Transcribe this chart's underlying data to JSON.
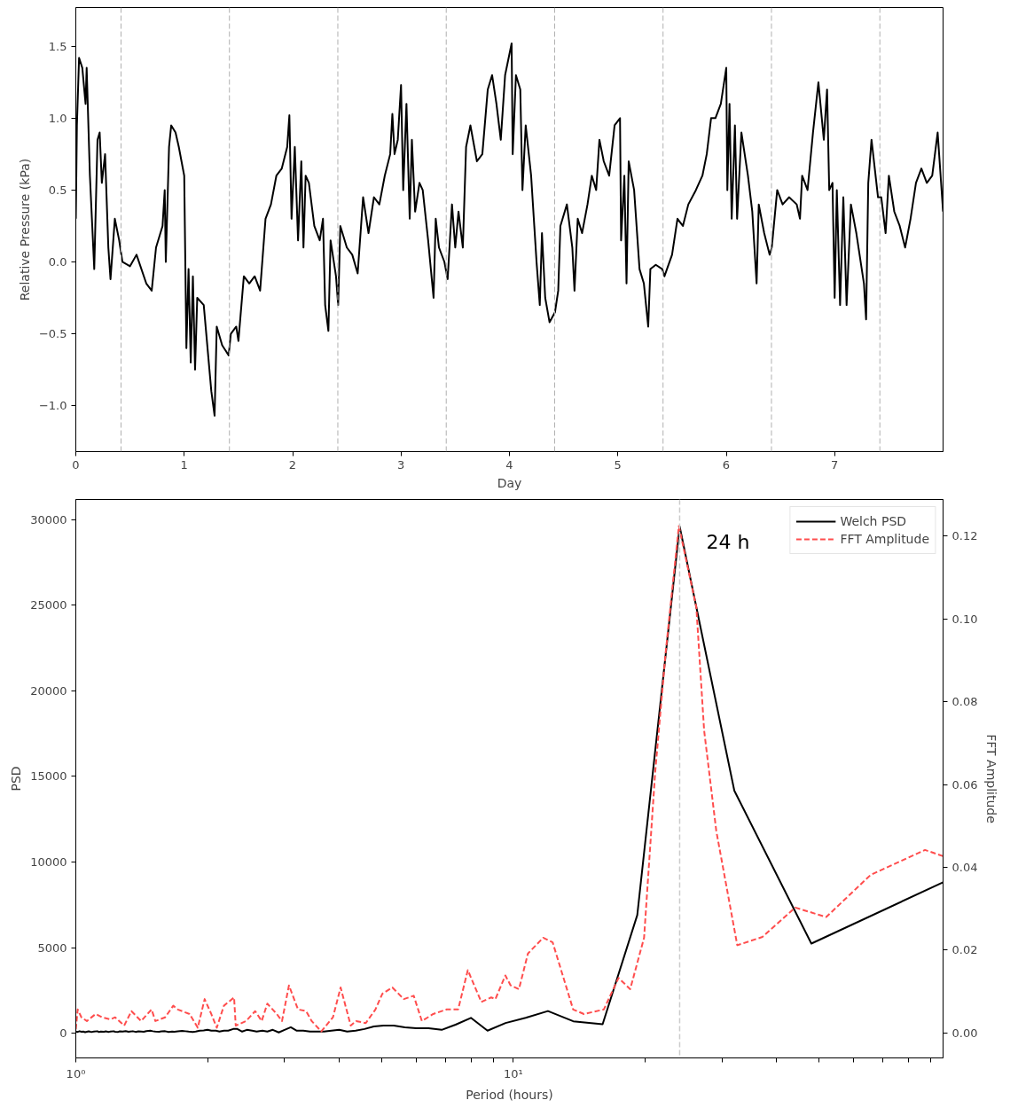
{
  "chart_data": [
    {
      "type": "line",
      "xlabel": "Day",
      "ylabel": "Relative Pressure (kPa)",
      "xlim": [
        0,
        8.0
      ],
      "ylim": [
        -1.32,
        1.77
      ],
      "xticks": [
        0,
        1,
        2,
        3,
        4,
        5,
        6,
        7
      ],
      "yticks": [
        {
          "value": -1.0,
          "label": "−1.0"
        },
        {
          "value": -0.5,
          "label": "−0.5"
        },
        {
          "value": 0.0,
          "label": "0.0"
        },
        {
          "value": 0.5,
          "label": "0.5"
        },
        {
          "value": 1.0,
          "label": "1.0"
        },
        {
          "value": 1.5,
          "label": "1.5"
        }
      ],
      "grid": false,
      "legend": false,
      "line_style": "solid",
      "series": [
        {
          "color": "#000000",
          "x": [
            0,
            0.01,
            0.03,
            0.06,
            0.09,
            0.1,
            0.13,
            0.17,
            0.2,
            0.22,
            0.24,
            0.27,
            0.3,
            0.32,
            0.36,
            0.4,
            0.43,
            0.5,
            0.56,
            0.65,
            0.7,
            0.74,
            0.8,
            0.82,
            0.83,
            0.86,
            0.88,
            0.92,
            0.95,
            1.0,
            1.02,
            1.04,
            1.06,
            1.08,
            1.1,
            1.12,
            1.18,
            1.25,
            1.28,
            1.3,
            1.35,
            1.41,
            1.43,
            1.48,
            1.5,
            1.55,
            1.6,
            1.65,
            1.7,
            1.75,
            1.8,
            1.85,
            1.9,
            1.95,
            1.97,
            1.99,
            2.02,
            2.05,
            2.08,
            2.1,
            2.12,
            2.15,
            2.2,
            2.25,
            2.28,
            2.3,
            2.33,
            2.35,
            2.4,
            2.42,
            2.44,
            2.5,
            2.55,
            2.6,
            2.65,
            2.7,
            2.75,
            2.8,
            2.85,
            2.9,
            2.92,
            2.94,
            2.97,
            3.0,
            3.02,
            3.05,
            3.08,
            3.1,
            3.13,
            3.17,
            3.2,
            3.25,
            3.3,
            3.32,
            3.35,
            3.4,
            3.43,
            3.47,
            3.5,
            3.53,
            3.57,
            3.6,
            3.64,
            3.7,
            3.75,
            3.8,
            3.84,
            3.88,
            3.92,
            3.96,
            4.02,
            4.03,
            4.06,
            4.1,
            4.12,
            4.15,
            4.2,
            4.25,
            4.28,
            4.3,
            4.33,
            4.37,
            4.42,
            4.45,
            4.47,
            4.53,
            4.58,
            4.6,
            4.63,
            4.67,
            4.72,
            4.76,
            4.8,
            4.83,
            4.87,
            4.92,
            4.97,
            5.02,
            5.03,
            5.06,
            5.08,
            5.1,
            5.15,
            5.2,
            5.24,
            5.28,
            5.3,
            5.35,
            5.41,
            5.43,
            5.5,
            5.55,
            5.6,
            5.65,
            5.72,
            5.78,
            5.82,
            5.86,
            5.9,
            5.95,
            6.0,
            6.01,
            6.03,
            6.05,
            6.08,
            6.1,
            6.14,
            6.2,
            6.24,
            6.28,
            6.3,
            6.35,
            6.4,
            6.42,
            6.47,
            6.52,
            6.58,
            6.65,
            6.68,
            6.7,
            6.75,
            6.8,
            6.85,
            6.9,
            6.93,
            6.95,
            6.98,
            7.0,
            7.02,
            7.05,
            7.08,
            7.11,
            7.15,
            7.2,
            7.27,
            7.29,
            7.31,
            7.34,
            7.4,
            7.43,
            7.47,
            7.5,
            7.55,
            7.6,
            7.65,
            7.7,
            7.75,
            7.8,
            7.85,
            7.9,
            7.95,
            8.0
          ],
          "values": [
            0.3,
            0.95,
            1.42,
            1.35,
            1.1,
            1.35,
            0.6,
            -0.05,
            0.85,
            0.9,
            0.55,
            0.75,
            0.1,
            -0.12,
            0.3,
            0.15,
            0.0,
            -0.03,
            0.05,
            -0.15,
            -0.2,
            0.1,
            0.25,
            0.5,
            0.0,
            0.8,
            0.95,
            0.9,
            0.8,
            0.6,
            -0.6,
            -0.05,
            -0.7,
            -0.1,
            -0.75,
            -0.25,
            -0.3,
            -0.9,
            -1.07,
            -0.45,
            -0.58,
            -0.65,
            -0.5,
            -0.45,
            -0.55,
            -0.1,
            -0.15,
            -0.1,
            -0.2,
            0.3,
            0.4,
            0.6,
            0.65,
            0.8,
            1.02,
            0.3,
            0.8,
            0.15,
            0.7,
            0.1,
            0.6,
            0.55,
            0.25,
            0.15,
            0.3,
            -0.3,
            -0.48,
            0.15,
            -0.1,
            -0.3,
            0.25,
            0.1,
            0.05,
            -0.08,
            0.45,
            0.2,
            0.45,
            0.4,
            0.6,
            0.75,
            1.03,
            0.75,
            0.85,
            1.23,
            0.5,
            1.1,
            0.3,
            0.85,
            0.35,
            0.55,
            0.5,
            0.15,
            -0.25,
            0.3,
            0.1,
            0.0,
            -0.12,
            0.4,
            0.1,
            0.35,
            0.1,
            0.8,
            0.95,
            0.7,
            0.75,
            1.2,
            1.3,
            1.1,
            0.85,
            1.3,
            1.52,
            0.75,
            1.3,
            1.2,
            0.5,
            0.95,
            0.6,
            0.0,
            -0.3,
            0.2,
            -0.25,
            -0.42,
            -0.35,
            -0.2,
            0.25,
            0.4,
            0.1,
            -0.2,
            0.3,
            0.2,
            0.4,
            0.6,
            0.5,
            0.85,
            0.7,
            0.6,
            0.95,
            1.0,
            0.15,
            0.6,
            -0.15,
            0.7,
            0.5,
            -0.05,
            -0.15,
            -0.45,
            -0.05,
            -0.02,
            -0.05,
            -0.1,
            0.05,
            0.3,
            0.25,
            0.4,
            0.5,
            0.6,
            0.75,
            1.0,
            1.0,
            1.1,
            1.35,
            0.5,
            1.1,
            0.3,
            0.95,
            0.3,
            0.9,
            0.6,
            0.35,
            -0.15,
            0.4,
            0.2,
            0.05,
            0.1,
            0.5,
            0.4,
            0.45,
            0.4,
            0.3,
            0.6,
            0.5,
            0.9,
            1.25,
            0.85,
            1.2,
            0.5,
            0.55,
            -0.25,
            0.5,
            -0.3,
            0.45,
            -0.3,
            0.4,
            0.2,
            -0.15,
            -0.4,
            0.55,
            0.85,
            0.45,
            0.45,
            0.2,
            0.6,
            0.35,
            0.25,
            0.1,
            0.3,
            0.55,
            0.65,
            0.55,
            0.6,
            0.9,
            0.35
          ]
        }
      ],
      "ref_lines": [
        {
          "axis": "x",
          "value": 0.417,
          "color": "#b0b0b0",
          "line_style": "dashed"
        },
        {
          "axis": "x",
          "value": 1.417,
          "color": "#b0b0b0",
          "line_style": "dashed"
        },
        {
          "axis": "x",
          "value": 2.417,
          "color": "#b0b0b0",
          "line_style": "dashed"
        },
        {
          "axis": "x",
          "value": 3.417,
          "color": "#b0b0b0",
          "line_style": "dashed"
        },
        {
          "axis": "x",
          "value": 4.417,
          "color": "#b0b0b0",
          "line_style": "dashed"
        },
        {
          "axis": "x",
          "value": 5.417,
          "color": "#b0b0b0",
          "line_style": "dashed"
        },
        {
          "axis": "x",
          "value": 6.417,
          "color": "#b0b0b0",
          "line_style": "dashed"
        },
        {
          "axis": "x",
          "value": 7.417,
          "color": "#b0b0b0",
          "line_style": "dashed"
        }
      ]
    },
    {
      "type": "line",
      "xlabel": "Period (hours)",
      "ylabel": "PSD",
      "y2label": "FFT Amplitude",
      "log": "x",
      "xlim": [
        1,
        96
      ],
      "ylim": [
        -1440,
        31180
      ],
      "y2lim": [
        -0.006,
        0.1288
      ],
      "xticks": [
        {
          "value": 1,
          "label": "10⁰"
        },
        {
          "value": 2,
          "label": null
        },
        {
          "value": 3,
          "label": null
        },
        {
          "value": 4,
          "label": null
        },
        {
          "value": 5,
          "label": null
        },
        {
          "value": 6,
          "label": null
        },
        {
          "value": 7,
          "label": null
        },
        {
          "value": 8,
          "label": null
        },
        {
          "value": 9,
          "label": null
        },
        {
          "value": 10,
          "label": "10¹"
        },
        {
          "value": 20,
          "label": null
        },
        {
          "value": 30,
          "label": null
        },
        {
          "value": 40,
          "label": null
        },
        {
          "value": 50,
          "label": null
        },
        {
          "value": 60,
          "label": null
        },
        {
          "value": 70,
          "label": null
        },
        {
          "value": 80,
          "label": null
        },
        {
          "value": 90,
          "label": null
        }
      ],
      "yticks": [
        0,
        5000,
        10000,
        15000,
        20000,
        25000,
        30000
      ],
      "y2ticks": [
        {
          "value": 0.0,
          "label": "0.00"
        },
        {
          "value": 0.02,
          "label": "0.02"
        },
        {
          "value": 0.04,
          "label": "0.04"
        },
        {
          "value": 0.06,
          "label": "0.06"
        },
        {
          "value": 0.08,
          "label": "0.08"
        },
        {
          "value": 0.1,
          "label": "0.10"
        },
        {
          "value": 0.12,
          "label": "0.12"
        }
      ],
      "grid": false,
      "legend": "top right",
      "series": [
        {
          "name": "Welch PSD",
          "color": "#000000",
          "line_style": "solid",
          "x": [
            1.0,
            1.01,
            1.02,
            1.03,
            1.04,
            1.05,
            1.07,
            1.08,
            1.09,
            1.1,
            1.12,
            1.13,
            1.14,
            1.16,
            1.17,
            1.19,
            1.2,
            1.22,
            1.23,
            1.25,
            1.26,
            1.28,
            1.3,
            1.32,
            1.33,
            1.35,
            1.37,
            1.39,
            1.41,
            1.43,
            1.45,
            1.48,
            1.5,
            1.52,
            1.55,
            1.57,
            1.6,
            1.63,
            1.66,
            1.68,
            1.71,
            1.75,
            1.78,
            1.81,
            1.85,
            1.88,
            1.92,
            1.96,
            2.0,
            2.04,
            2.09,
            2.13,
            2.18,
            2.23,
            2.29,
            2.34,
            2.4,
            2.46,
            2.53,
            2.59,
            2.67,
            2.74,
            2.82,
            2.91,
            3.0,
            3.1,
            3.2,
            3.31,
            3.43,
            3.56,
            3.69,
            3.84,
            4.0,
            4.17,
            4.36,
            4.57,
            4.8,
            5.05,
            5.33,
            5.65,
            6.0,
            6.4,
            6.86,
            7.38,
            8.0,
            8.73,
            9.6,
            10.67,
            12.0,
            13.71,
            16.0,
            19.2,
            24.0,
            32.0,
            48.0,
            96.0
          ],
          "values": [
            100,
            80,
            120,
            90,
            100,
            60,
            110,
            90,
            80,
            100,
            120,
            70,
            100,
            90,
            110,
            80,
            100,
            120,
            90,
            80,
            110,
            100,
            130,
            90,
            100,
            120,
            80,
            110,
            100,
            90,
            130,
            150,
            120,
            100,
            90,
            110,
            120,
            80,
            100,
            90,
            110,
            140,
            120,
            100,
            80,
            100,
            150,
            170,
            200,
            150,
            150,
            100,
            150,
            150,
            250,
            250,
            100,
            200,
            150,
            100,
            150,
            100,
            200,
            50,
            200,
            350,
            150,
            150,
            100,
            100,
            100,
            150,
            200,
            100,
            150,
            250,
            400,
            450,
            450,
            350,
            300,
            300,
            200,
            500,
            900,
            150,
            600,
            900,
            1300,
            700,
            530,
            6900,
            29600,
            14170,
            5240,
            8820
          ]
        },
        {
          "name": "FFT Amplitude",
          "color": "#ff4d4d",
          "line_style": "dashed",
          "axis": "y2",
          "x": [
            1.0,
            1.01,
            1.03,
            1.06,
            1.11,
            1.15,
            1.2,
            1.23,
            1.29,
            1.34,
            1.41,
            1.49,
            1.52,
            1.6,
            1.67,
            1.71,
            1.82,
            1.9,
            1.97,
            2.04,
            2.1,
            2.18,
            2.3,
            2.32,
            2.45,
            2.57,
            2.66,
            2.74,
            2.88,
            2.96,
            3.07,
            3.22,
            3.36,
            3.46,
            3.64,
            3.87,
            4.03,
            4.25,
            4.37,
            4.6,
            4.84,
            5.02,
            5.29,
            5.62,
            5.92,
            6.18,
            6.56,
            7.04,
            7.48,
            7.87,
            8.45,
            8.9,
            9.1,
            9.59,
            9.86,
            10.3,
            10.8,
            11.7,
            12.3,
            13.7,
            14.5,
            16.1,
            17.4,
            18.5,
            19.9,
            21.1,
            22.3,
            23.9,
            26.2,
            27.3,
            29.1,
            32.5,
            37.1,
            44.1,
            51.9,
            65.6,
            87.3,
            96
          ],
          "values": [
            0.0009,
            0.0057,
            0.0038,
            0.0029,
            0.0046,
            0.0038,
            0.0033,
            0.0038,
            0.0018,
            0.0053,
            0.0029,
            0.0057,
            0.0029,
            0.0038,
            0.0066,
            0.0057,
            0.0046,
            0.0013,
            0.0082,
            0.0046,
            0.0013,
            0.0066,
            0.0086,
            0.0018,
            0.0029,
            0.0053,
            0.0029,
            0.0071,
            0.0046,
            0.0029,
            0.0115,
            0.0057,
            0.0053,
            0.0029,
            0.0004,
            0.0038,
            0.011,
            0.0018,
            0.0029,
            0.0024,
            0.0057,
            0.0095,
            0.011,
            0.0082,
            0.009,
            0.0029,
            0.0046,
            0.0057,
            0.0057,
            0.0152,
            0.0075,
            0.0086,
            0.0082,
            0.0139,
            0.0115,
            0.0106,
            0.0192,
            0.023,
            0.0219,
            0.0057,
            0.0046,
            0.0057,
            0.0133,
            0.0106,
            0.023,
            0.063,
            0.092,
            0.1224,
            0.1028,
            0.073,
            0.0488,
            0.0212,
            0.0232,
            0.0303,
            0.028,
            0.0382,
            0.0442,
            0.0427
          ]
        }
      ],
      "ref_lines": [
        {
          "axis": "x",
          "value": 24,
          "label": "24 h",
          "color": "#cccccc",
          "line_style": "dashed"
        }
      ]
    }
  ]
}
